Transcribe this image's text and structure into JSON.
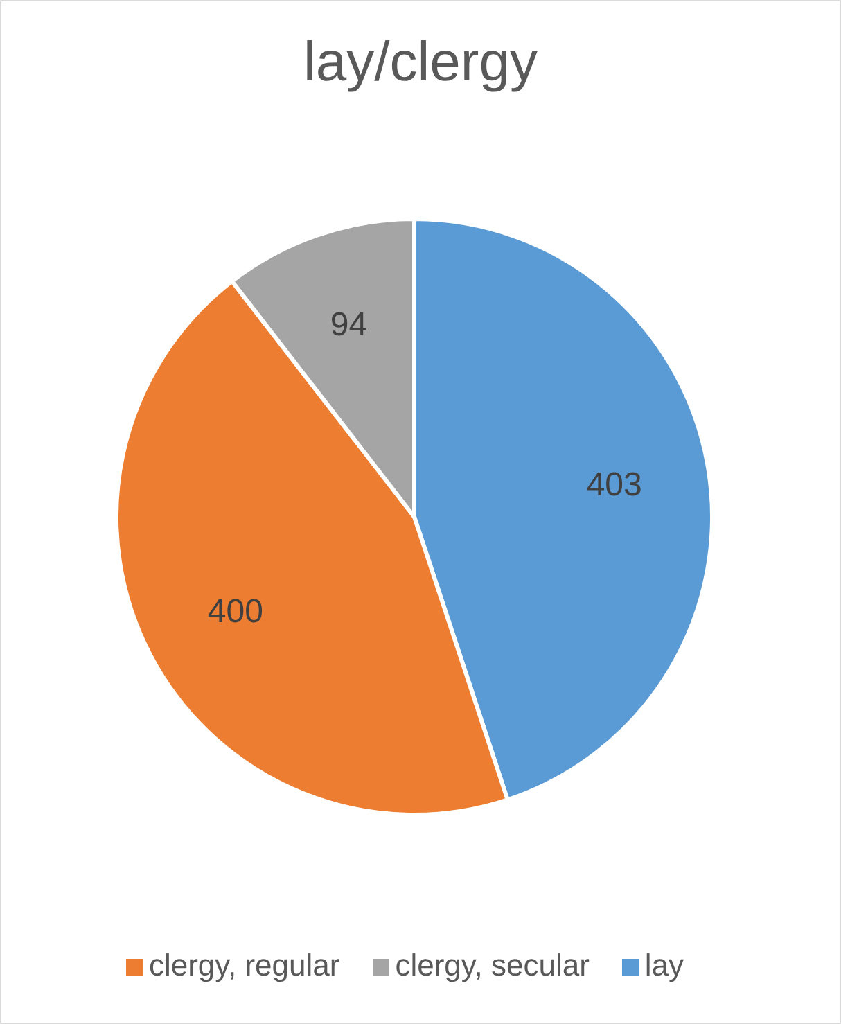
{
  "chart_data": {
    "type": "pie",
    "title": "lay/clergy",
    "categories": [
      "lay",
      "clergy, regular",
      "clergy, secular"
    ],
    "values": [
      403,
      400,
      94
    ],
    "colors": [
      "#5b9bd5",
      "#ed7d31",
      "#a5a5a5"
    ],
    "data_labels": true,
    "legend": "bottom"
  }
}
